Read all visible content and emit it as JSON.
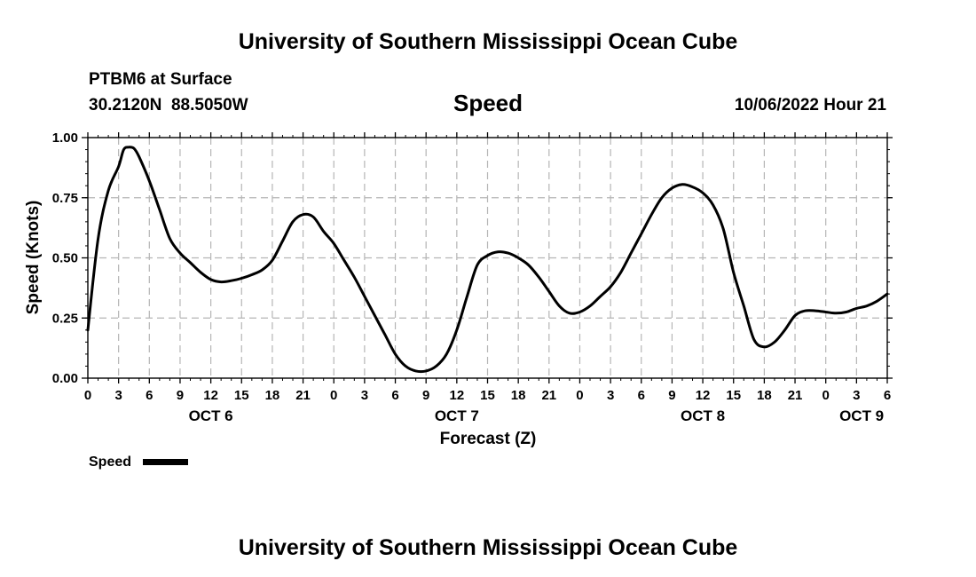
{
  "header": {
    "title": "University of Southern Mississippi Ocean Cube",
    "station": "PTBM6 at Surface",
    "coords": "30.2120N  88.5050W",
    "timestamp": "10/06/2022 Hour 21"
  },
  "footer": {
    "title": "University of Southern Mississippi Ocean Cube"
  },
  "chart_data": {
    "type": "line",
    "title": "Speed",
    "xlabel": "Forecast (Z)",
    "ylabel": "Speed (Knots)",
    "xlim": [
      0,
      78
    ],
    "ylim": [
      0,
      1.0
    ],
    "grid": true,
    "legend_position": "bottom-left",
    "y_ticks": [
      "0.00",
      "0.25",
      "0.50",
      "0.75",
      "1.00"
    ],
    "x_tick_labels": [
      "0",
      "3",
      "6",
      "9",
      "12",
      "15",
      "18",
      "21",
      "0",
      "3",
      "6",
      "9",
      "12",
      "15",
      "18",
      "21",
      "0",
      "3",
      "6",
      "9",
      "12",
      "15",
      "18",
      "21",
      "0",
      "3",
      "6"
    ],
    "day_labels": [
      {
        "label": "OCT 6",
        "hour": 12
      },
      {
        "label": "OCT 7",
        "hour": 36
      },
      {
        "label": "OCT 8",
        "hour": 60
      },
      {
        "label": "OCT 9",
        "hour": 75.5
      }
    ],
    "series": [
      {
        "name": "Speed",
        "color": "#000000",
        "x": [
          0,
          1,
          2,
          3,
          3.5,
          4,
          4.5,
          5,
          6,
          7,
          8,
          9,
          10,
          11,
          12,
          13,
          14,
          15,
          16,
          17,
          18,
          19,
          20,
          21,
          22,
          23,
          24,
          25,
          26,
          27,
          28,
          29,
          30,
          31,
          32,
          33,
          34,
          35,
          36,
          37,
          38,
          39,
          40,
          41,
          42,
          43,
          44,
          45,
          46,
          47,
          48,
          49,
          50,
          51,
          52,
          53,
          54,
          55,
          56,
          57,
          58,
          59,
          60,
          61,
          62,
          63,
          64,
          65,
          66,
          67,
          68,
          69,
          70,
          71,
          72,
          73,
          74,
          75,
          76,
          77,
          78
        ],
        "values": [
          0.2,
          0.58,
          0.78,
          0.88,
          0.95,
          0.96,
          0.955,
          0.92,
          0.82,
          0.7,
          0.58,
          0.52,
          0.48,
          0.44,
          0.41,
          0.4,
          0.405,
          0.415,
          0.43,
          0.45,
          0.49,
          0.57,
          0.65,
          0.68,
          0.67,
          0.61,
          0.56,
          0.49,
          0.42,
          0.34,
          0.26,
          0.18,
          0.1,
          0.05,
          0.03,
          0.03,
          0.05,
          0.1,
          0.2,
          0.34,
          0.47,
          0.51,
          0.525,
          0.52,
          0.5,
          0.47,
          0.42,
          0.36,
          0.3,
          0.27,
          0.275,
          0.3,
          0.34,
          0.38,
          0.44,
          0.52,
          0.6,
          0.68,
          0.75,
          0.79,
          0.805,
          0.795,
          0.77,
          0.72,
          0.62,
          0.44,
          0.3,
          0.16,
          0.13,
          0.15,
          0.2,
          0.26,
          0.28,
          0.28,
          0.275,
          0.27,
          0.275,
          0.29,
          0.3,
          0.32,
          0.35
        ]
      }
    ],
    "legend": [
      {
        "name": "Speed",
        "color": "#000000"
      }
    ]
  }
}
